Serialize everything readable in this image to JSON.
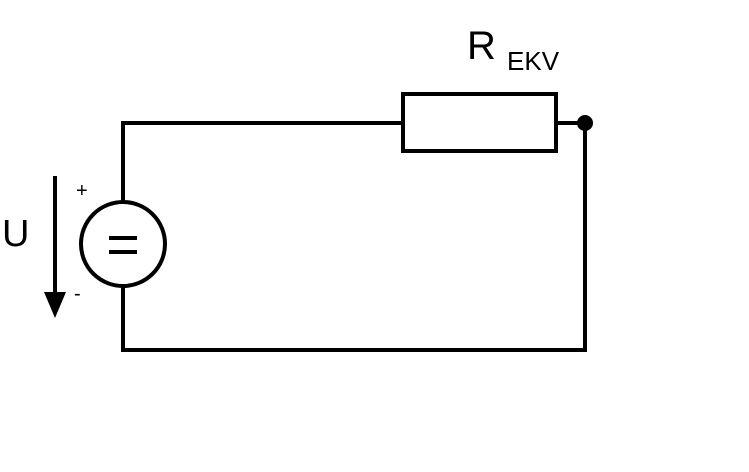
{
  "diagram": {
    "resistor": {
      "symbol": "R",
      "subscript": "EKV"
    },
    "source": {
      "voltage_label": "U",
      "plus_sign": "+",
      "minus_sign": "-",
      "symbol": "="
    }
  },
  "colors": {
    "line": "#000000",
    "background": "#ffffff"
  }
}
